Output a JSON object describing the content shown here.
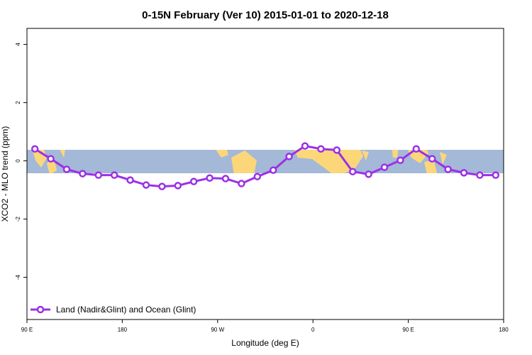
{
  "chart_data": {
    "type": "line",
    "title": "0-15N February (Ver 10)   2015-01-01 to 2020-12-18",
    "x_label": "Longitude (deg E)",
    "y_label": "XCO2 - MLO trend (ppm)",
    "x": [
      97.5,
      112.5,
      127.5,
      142.5,
      157.5,
      172.5,
      187.5,
      202.5,
      217.5,
      232.5,
      247.5,
      262.5,
      277.5,
      292.5,
      307.5,
      322.5,
      337.5,
      352.5,
      367.5,
      382.5,
      397.5,
      412.5,
      427.5,
      442.5,
      457.5,
      472.5,
      487.5,
      502.5,
      517.5,
      532.5
    ],
    "series": [
      {
        "name": "Land (Nadir&Glint) and Ocean (Glint)",
        "color": "#9b30e6",
        "values": [
          0.41,
          0.07,
          -0.29,
          -0.44,
          -0.49,
          -0.49,
          -0.66,
          -0.83,
          -0.88,
          -0.85,
          -0.71,
          -0.59,
          -0.61,
          -0.78,
          -0.54,
          -0.32,
          0.15,
          0.51,
          0.41,
          0.37,
          -0.37,
          -0.46,
          -0.22,
          0.02,
          0.41,
          0.07,
          -0.29,
          -0.41,
          -0.49,
          -0.49
        ]
      }
    ],
    "xlim": [
      90,
      540
    ],
    "ylim": [
      -5.45,
      4.55
    ],
    "xticks": [
      {
        "value": 90,
        "label": "90 E"
      },
      180,
      {
        "value": 270,
        "label": "90 W"
      },
      {
        "value": 360,
        "label": "0"
      },
      {
        "value": 450,
        "label": "90 E"
      },
      {
        "value": 540,
        "label": "180"
      }
    ],
    "yticks": [
      -4,
      -2,
      0,
      2,
      4
    ],
    "legend": "bottom-left"
  }
}
